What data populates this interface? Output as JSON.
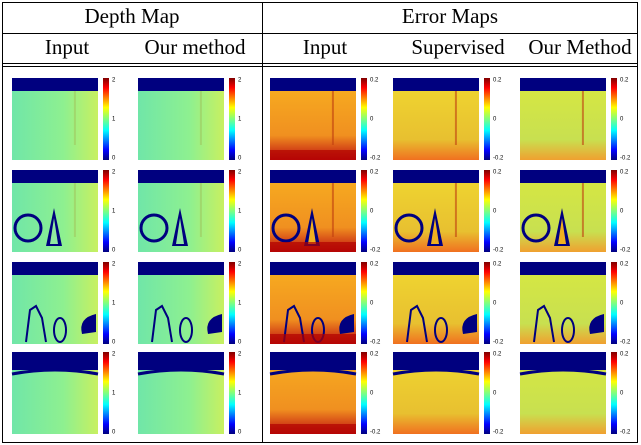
{
  "header": {
    "groups": [
      "Depth Map",
      "Error Maps"
    ],
    "columns": [
      "Input",
      "Our method",
      "Input",
      "Supervised",
      "Our Method"
    ]
  },
  "colorbars": {
    "depth": [
      "2",
      "1",
      "0"
    ],
    "error": [
      "0.2",
      "0",
      "-0.2"
    ]
  }
}
